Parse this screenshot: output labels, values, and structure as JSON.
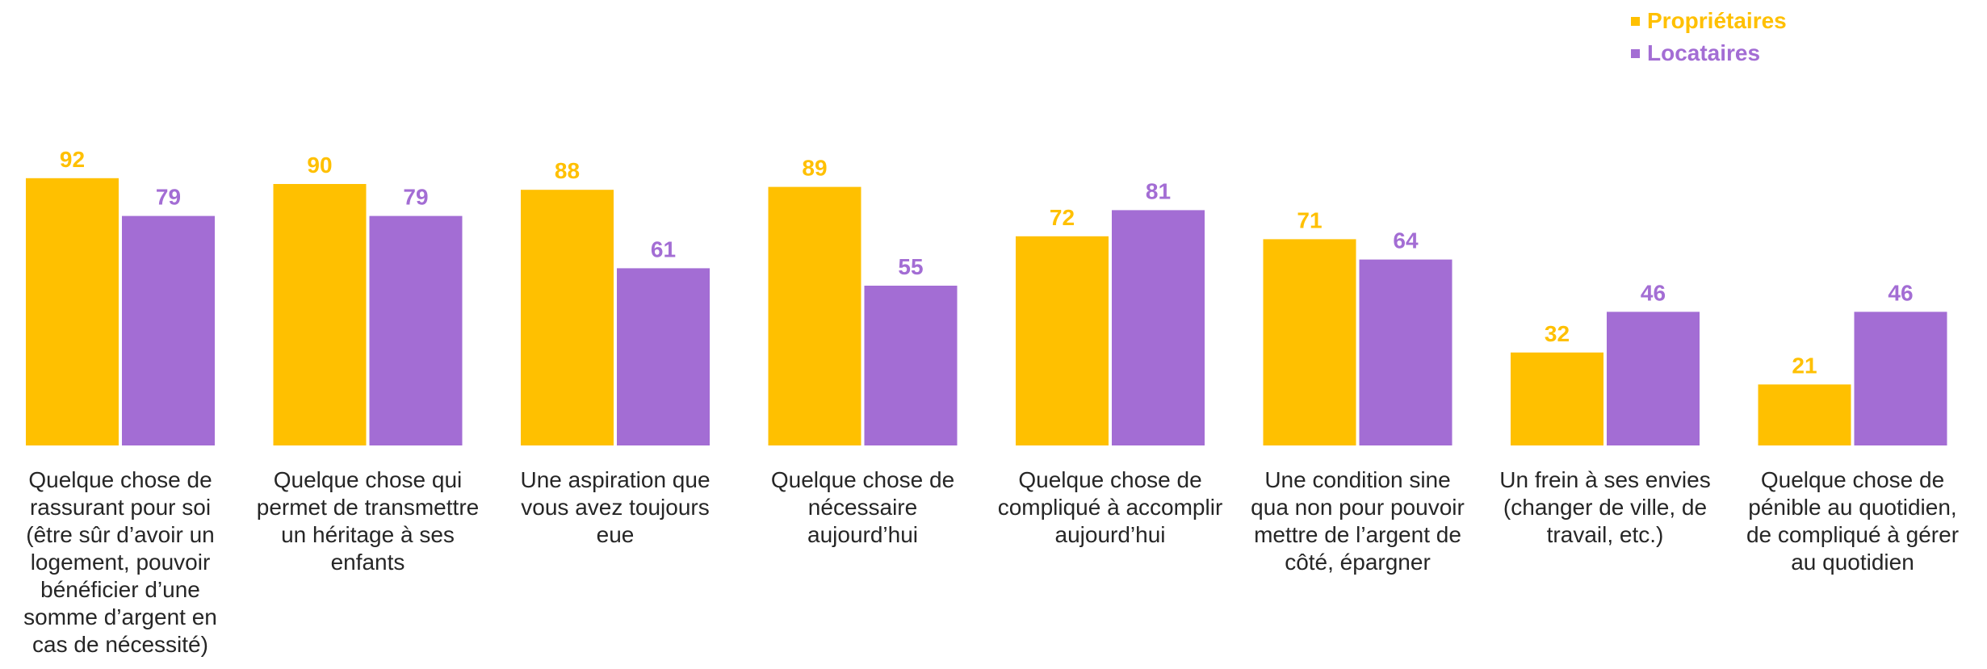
{
  "chart_data": {
    "type": "bar",
    "categories": [
      "Quelque chose de rassurant pour soi (être sûr d’avoir un logement, pouvoir bénéficier d’une somme d’argent en cas de nécessité)",
      "Quelque chose qui permet de transmettre un héritage à ses enfants",
      "Une aspiration que vous avez toujours eue",
      "Quelque chose de nécessaire aujourd’hui",
      "Quelque chose de compliqué à accomplir aujourd’hui",
      "Une condition sine qua non pour pouvoir mettre de l’argent de côté, épargner",
      "Un frein à ses envies (changer de ville, de travail, etc.)",
      "Quelque chose de pénible au quotidien, de compliqué à gérer au quotidien"
    ],
    "series": [
      {
        "name": "Propriétaires",
        "color": "#FFC000",
        "values": [
          92,
          90,
          88,
          89,
          72,
          71,
          32,
          21
        ]
      },
      {
        "name": "Locataires",
        "color": "#A36DD4",
        "values": [
          79,
          79,
          61,
          55,
          81,
          64,
          46,
          46
        ]
      }
    ],
    "legend_position": "top-right",
    "grid": false,
    "ylim": [
      0,
      100
    ],
    "title": "",
    "xlabel": "",
    "ylabel": ""
  }
}
